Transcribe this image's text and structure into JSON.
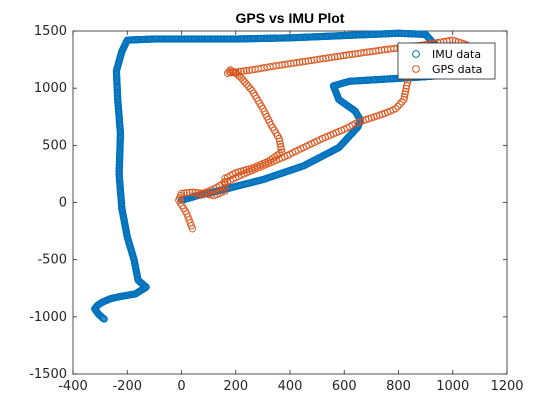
{
  "chart_data": {
    "type": "scatter",
    "title": "GPS vs IMU Plot",
    "xlabel": "",
    "ylabel": "",
    "xlim": [
      -400,
      1200
    ],
    "ylim": [
      -1500,
      1500
    ],
    "xticks": [
      -400,
      -200,
      0,
      200,
      400,
      600,
      800,
      1000,
      1200
    ],
    "yticks": [
      -1500,
      -1000,
      -500,
      0,
      500,
      1000,
      1500
    ],
    "grid": false,
    "marker": "circle",
    "legend_position": "top-right",
    "series": [
      {
        "name": "IMU data",
        "color": "#0072BD",
        "x": [
          0,
          60,
          150,
          300,
          450,
          580,
          650,
          660,
          640,
          580,
          560,
          620,
          760,
          900,
          1000,
          980,
          900,
          800,
          600,
          400,
          200,
          0,
          -100,
          -200,
          -220,
          -240,
          -235,
          -225,
          -230,
          -220,
          -200,
          -175,
          -160,
          -140,
          -130,
          -170,
          -220,
          -260,
          -290,
          -310,
          -320,
          -305,
          -290,
          -285
        ],
        "y": [
          20,
          60,
          110,
          200,
          320,
          480,
          660,
          720,
          800,
          900,
          1020,
          1060,
          1080,
          1100,
          1120,
          1260,
          1470,
          1480,
          1460,
          1440,
          1430,
          1430,
          1430,
          1420,
          1320,
          1150,
          900,
          600,
          250,
          -50,
          -300,
          -500,
          -680,
          -720,
          -740,
          -800,
          -820,
          -840,
          -870,
          -900,
          -930,
          -980,
          -1010,
          -1020
        ]
      },
      {
        "name": "GPS data",
        "color": "#D95319",
        "x": [
          40,
          20,
          -10,
          0,
          40,
          80,
          120,
          160,
          160,
          200,
          260,
          320,
          370,
          360,
          330,
          300,
          260,
          220,
          200,
          180,
          170,
          200,
          260,
          360,
          500,
          640,
          760,
          900,
          1000,
          1050,
          1020,
          850,
          830,
          820,
          790,
          750,
          700,
          650,
          600,
          520,
          450,
          380,
          300,
          220,
          150,
          120,
          100,
          60
        ],
        "y": [
          -230,
          -100,
          20,
          80,
          90,
          80,
          60,
          100,
          210,
          260,
          300,
          360,
          440,
          560,
          680,
          820,
          980,
          1090,
          1130,
          1160,
          1130,
          1140,
          1160,
          1200,
          1250,
          1300,
          1340,
          1380,
          1420,
          1380,
          1320,
          1180,
          1020,
          900,
          820,
          780,
          740,
          700,
          640,
          560,
          480,
          400,
          320,
          240,
          160,
          120,
          100,
          60
        ]
      }
    ]
  }
}
